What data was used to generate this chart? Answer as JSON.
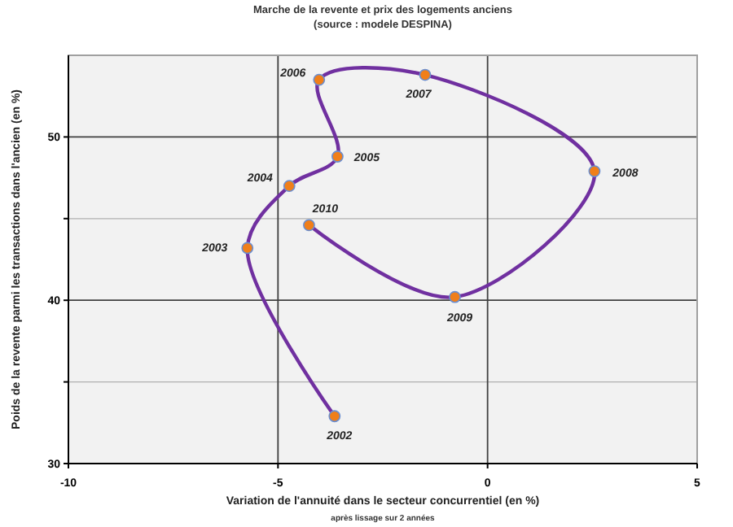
{
  "chart_data": {
    "type": "line",
    "title": "Marche de la revente et prix des logements anciens",
    "subtitle": "(source : modele DESPINA)",
    "xlabel": "Variation de l'annuité dans le secteur concurrentiel (en %)",
    "ylabel": "Poids de la revente parmi les transactions dans l'ancien (en %)",
    "x": [
      -3.65,
      -5.73,
      -4.73,
      -3.58,
      -4.02,
      -1.49,
      2.55,
      -0.78,
      -4.26
    ],
    "series": [
      {
        "color": "#7030a0",
        "values": [
          32.9,
          43.2,
          47.0,
          48.8,
          53.5,
          53.8,
          47.9,
          40.2,
          44.6
        ]
      }
    ],
    "xlim": [
      -10,
      5
    ],
    "xticks": [
      -10,
      -5,
      0,
      5
    ],
    "ylim": [
      30,
      55
    ],
    "yticks": [
      30,
      {
        "value": 35,
        "label": null
      },
      40,
      {
        "value": 45,
        "label": null
      },
      50
    ],
    "grid": true,
    "marker": "circle",
    "line_style": "solid",
    "annotations": [
      {
        "text": "2002",
        "x": -3.65,
        "y": 32.9
      },
      {
        "text": "2003",
        "x": -5.73,
        "y": 43.2
      },
      {
        "text": "2004",
        "x": -4.73,
        "y": 47.0
      },
      {
        "text": "2005",
        "x": -3.58,
        "y": 48.8
      },
      {
        "text": "2006",
        "x": -4.02,
        "y": 53.5
      },
      {
        "text": "2007",
        "x": -1.49,
        "y": 53.8
      },
      {
        "text": "2008",
        "x": 2.55,
        "y": 47.9
      },
      {
        "text": "2009",
        "x": -0.78,
        "y": 40.2
      },
      {
        "text": "2010",
        "x": -4.26,
        "y": 44.6
      },
      "après lissage sur 2 années"
    ]
  }
}
